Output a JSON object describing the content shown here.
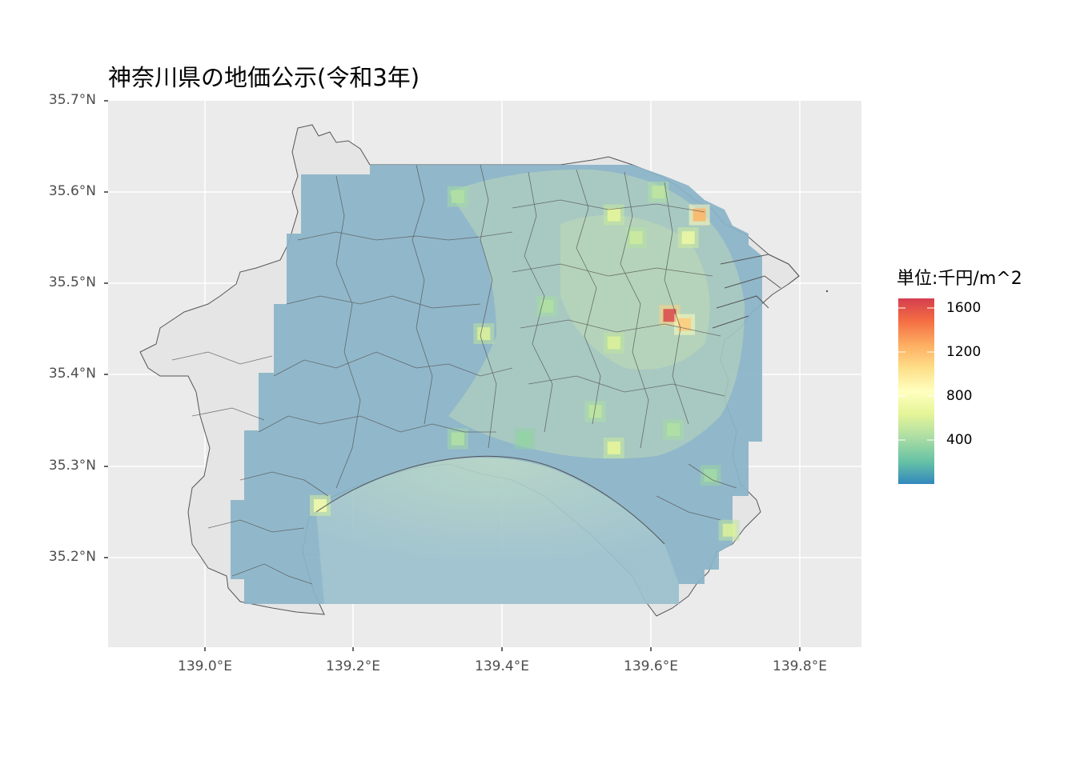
{
  "title": "神奈川県の地価公示(令和3年)",
  "legend": {
    "title": "単位:千円/m^2",
    "ticks": [
      "1600",
      "1200",
      "800",
      "400"
    ],
    "tick_values": [
      1600,
      1200,
      800,
      400
    ],
    "range": [
      50,
      1750
    ],
    "palette": [
      "#3288bd",
      "#66c2a5",
      "#abdda4",
      "#e6f598",
      "#ffffbf",
      "#fee08b",
      "#fdae61",
      "#f46d43",
      "#d53e4f"
    ]
  },
  "axes": {
    "x": {
      "ticks": [
        "139.0°E",
        "139.2°E",
        "139.4°E",
        "139.6°E",
        "139.8°E"
      ],
      "tick_values": [
        139.0,
        139.2,
        139.4,
        139.6,
        139.8
      ],
      "range": [
        138.87,
        139.88
      ]
    },
    "y": {
      "ticks": [
        "35.7°N",
        "35.6°N",
        "35.5°N",
        "35.4°N",
        "35.3°N",
        "35.2°N"
      ],
      "tick_values": [
        35.7,
        35.6,
        35.5,
        35.4,
        35.3,
        35.2
      ],
      "range": [
        35.11,
        35.7
      ]
    }
  },
  "colors": {
    "panel": "#ebebeb",
    "grid": "#ffffff",
    "land": "#e5e5e5",
    "boundary": "#555555"
  },
  "chart_data": {
    "type": "heatmap",
    "title": "神奈川県の地価公示(令和3年)",
    "legend_title": "単位:千円/m^2",
    "hotspots": [
      {
        "lon": 139.625,
        "lat": 35.465,
        "value": 1700
      },
      {
        "lon": 139.645,
        "lat": 35.455,
        "value": 1200
      },
      {
        "lon": 139.665,
        "lat": 35.575,
        "value": 1300
      },
      {
        "lon": 139.55,
        "lat": 35.575,
        "value": 700
      },
      {
        "lon": 139.65,
        "lat": 35.55,
        "value": 750
      },
      {
        "lon": 139.58,
        "lat": 35.55,
        "value": 600
      },
      {
        "lon": 139.375,
        "lat": 35.445,
        "value": 650
      },
      {
        "lon": 139.46,
        "lat": 35.475,
        "value": 500
      },
      {
        "lon": 139.55,
        "lat": 35.435,
        "value": 650
      },
      {
        "lon": 139.55,
        "lat": 35.32,
        "value": 700
      },
      {
        "lon": 139.525,
        "lat": 35.36,
        "value": 550
      },
      {
        "lon": 139.155,
        "lat": 35.257,
        "value": 800
      },
      {
        "lon": 139.705,
        "lat": 35.23,
        "value": 650
      },
      {
        "lon": 139.34,
        "lat": 35.33,
        "value": 500
      },
      {
        "lon": 139.34,
        "lat": 35.595,
        "value": 500
      },
      {
        "lon": 139.61,
        "lat": 35.6,
        "value": 550
      },
      {
        "lon": 139.63,
        "lat": 35.34,
        "value": 500
      },
      {
        "lon": 139.68,
        "lat": 35.29,
        "value": 450
      },
      {
        "lon": 139.43,
        "lat": 35.33,
        "value": 400
      }
    ]
  }
}
